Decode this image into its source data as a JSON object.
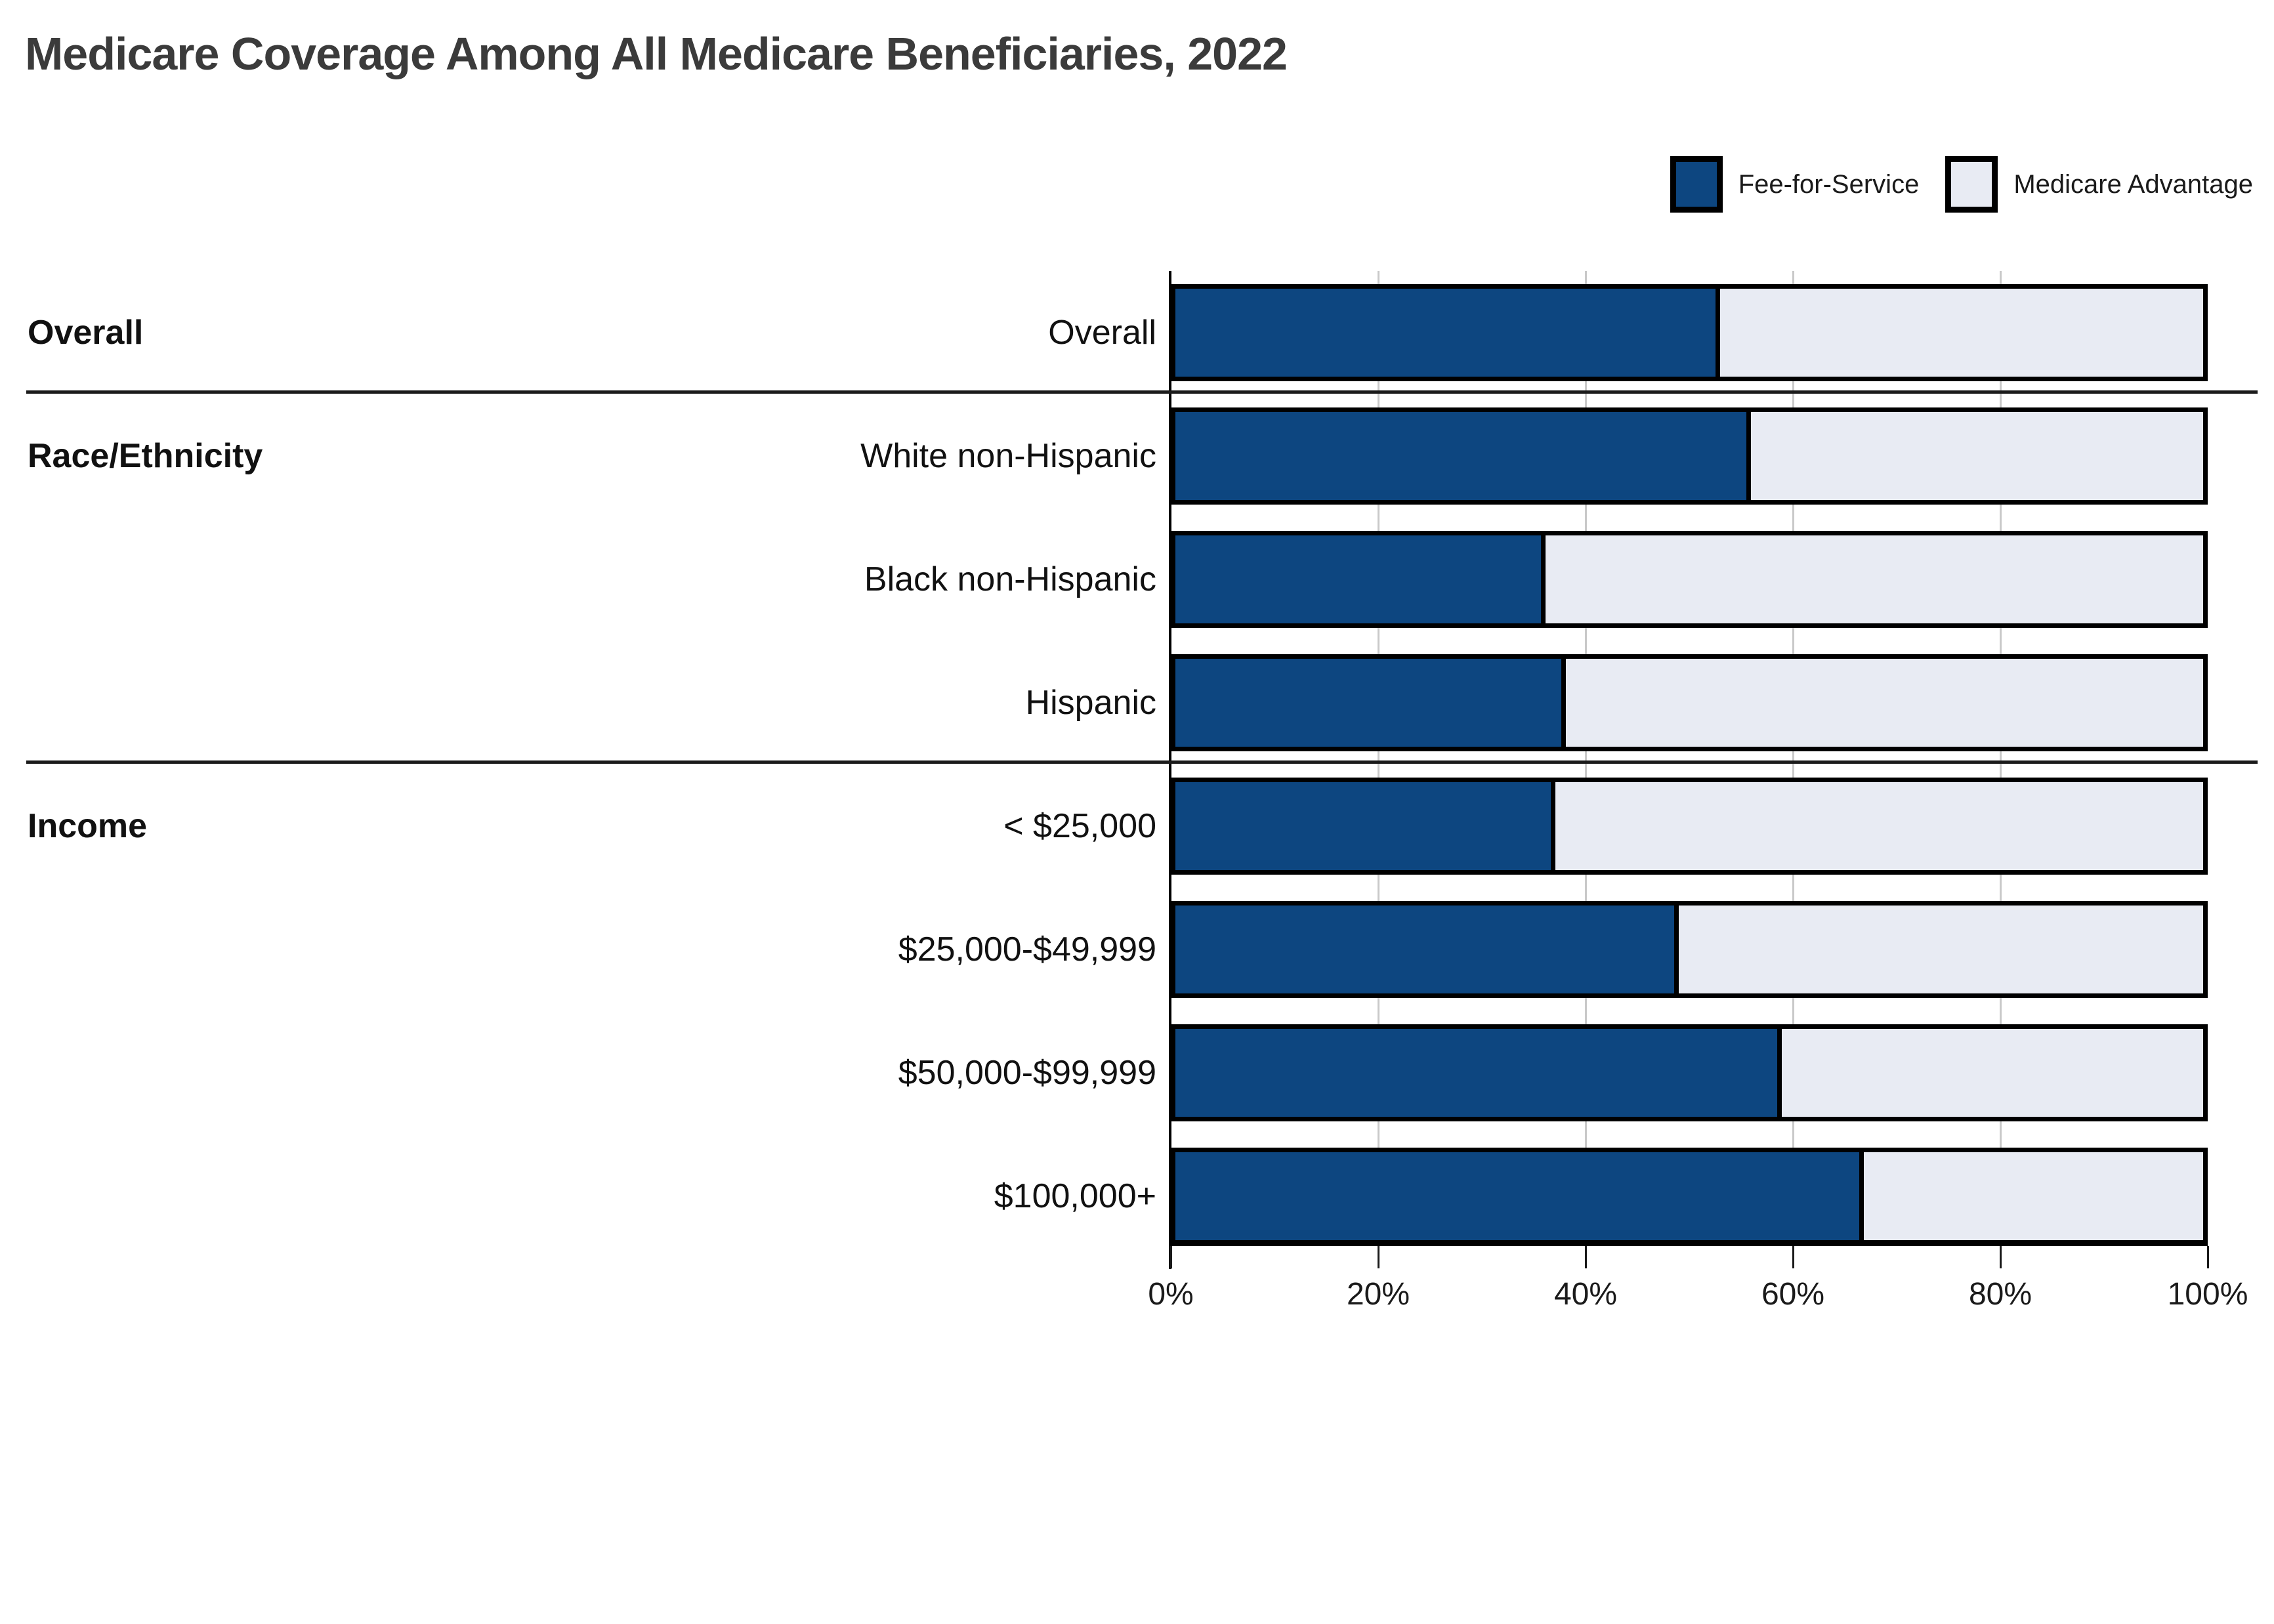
{
  "title": "Medicare Coverage Among All Medicare Beneficiaries, 2022",
  "legend": [
    {
      "label": "Fee-for-Service",
      "color": "#0d4680"
    },
    {
      "label": "Medicare Advantage",
      "color": "#e8ebf3"
    }
  ],
  "colors": {
    "fee_for_service": "#0d4680",
    "medicare_advantage": "#e8ebf3",
    "bar_border": "#000000",
    "gridline": "#c9c9c9",
    "title_text": "#3b3b3b"
  },
  "chart_data": {
    "type": "bar",
    "stacked": true,
    "orientation": "horizontal",
    "title": "Medicare Coverage Among All Medicare Beneficiaries, 2022",
    "xlabel": "",
    "ylabel": "",
    "x_range": [
      0,
      100
    ],
    "x_ticks": [
      "0%",
      "20%",
      "40%",
      "60%",
      "80%",
      "100%"
    ],
    "grid": "vertical",
    "legend_position": "top-right",
    "sections": [
      {
        "label": "Overall",
        "categories": [
          "Overall"
        ]
      },
      {
        "label": "Race/Ethnicity",
        "categories": [
          "White non-Hispanic",
          "Black non-Hispanic",
          "Hispanic"
        ]
      },
      {
        "label": "Income",
        "categories": [
          "< $25,000",
          "$25,000-$49,999",
          "$50,000-$99,999",
          "$100,000+"
        ]
      }
    ],
    "categories": [
      "Overall",
      "White non-Hispanic",
      "Black non-Hispanic",
      "Hispanic",
      "< $25,000",
      "$25,000-$49,999",
      "$50,000-$99,999",
      "$100,000+"
    ],
    "series": [
      {
        "name": "Fee-for-Service",
        "color": "#0d4680",
        "values": [
          53,
          56,
          36,
          38,
          37,
          49,
          59,
          67
        ]
      },
      {
        "name": "Medicare Advantage",
        "color": "#e8ebf3",
        "values": [
          47,
          44,
          64,
          62,
          63,
          51,
          41,
          33
        ]
      }
    ]
  }
}
